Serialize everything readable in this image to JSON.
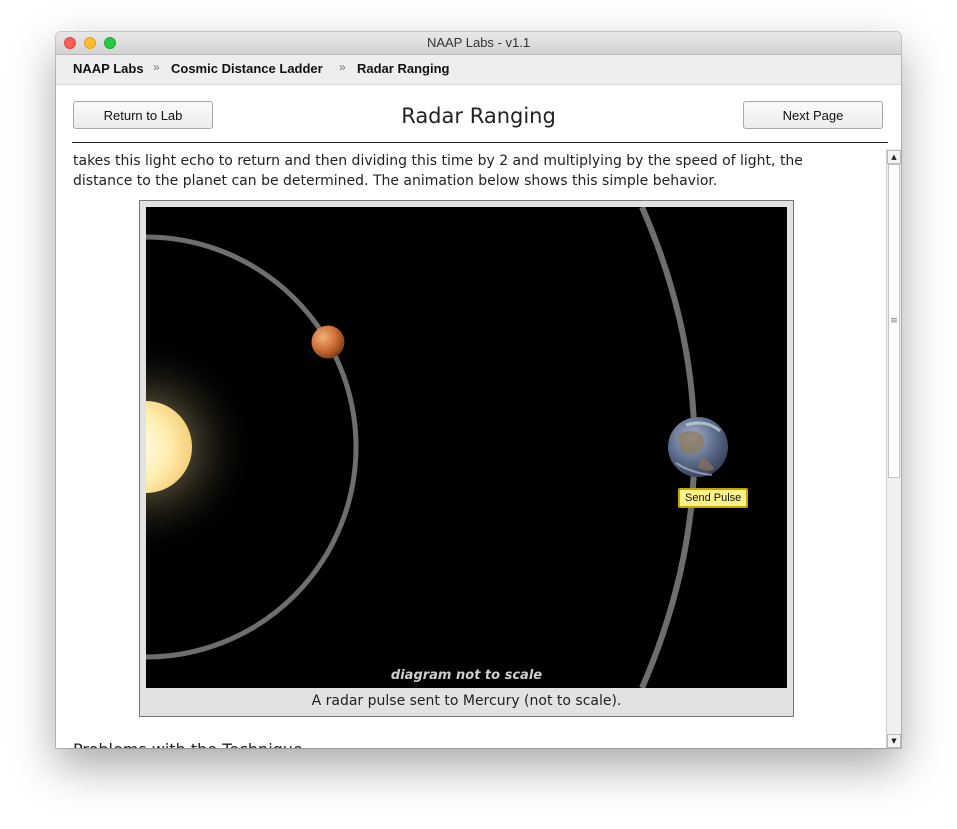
{
  "window": {
    "title": "NAAP Labs - v1.1"
  },
  "breadcrumb": {
    "items": [
      "NAAP Labs",
      "Cosmic Distance Ladder",
      "Radar Ranging"
    ],
    "separator": "»"
  },
  "header": {
    "return_label": "Return to Lab",
    "title": "Radar Ranging",
    "next_label": "Next Page"
  },
  "content": {
    "paragraph": "takes this light echo to return and then dividing this time by 2 and multiplying by the speed of light, the distance to the planet can be determined. The animation below shows this simple behavior.",
    "figure": {
      "send_pulse_label": "Send Pulse",
      "scale_note": "diagram not to scale",
      "caption": "A radar pulse sent to Mercury (not to scale)."
    },
    "next_section_heading": "Problems with the Technique"
  },
  "icons": {
    "close": "close-icon",
    "minimize": "minimize-icon",
    "maximize": "maximize-icon",
    "scroll_up": "scroll-up-arrow",
    "scroll_down": "scroll-down-arrow",
    "sun": "sun",
    "mercury": "mercury-planet",
    "earth": "earth-planet"
  },
  "colors": {
    "animation_background": "#000000",
    "orbit": "#6e6e6e",
    "send_pulse_fill": "#fff38a",
    "send_pulse_border": "#c9a600"
  }
}
